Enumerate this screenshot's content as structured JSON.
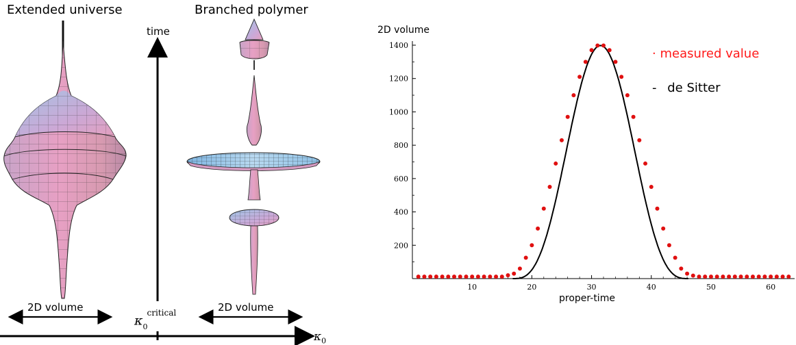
{
  "diagram": {
    "extended_title": "Extended universe",
    "branched_title": "Branched polymer",
    "time_label": "time",
    "volume_label_left": "2D volume",
    "volume_label_right": "2D volume",
    "kappa_critical": "κ",
    "kappa_critical_sub": "0",
    "kappa_critical_sup": "critical",
    "kappa_axis": "κ",
    "kappa_axis_sub": "0"
  },
  "chart_data": {
    "type": "scatter",
    "title": "",
    "ylabel": "2D volume",
    "xlabel": "proper-time",
    "xlim": [
      0,
      64
    ],
    "ylim": [
      0,
      1400
    ],
    "xticks": [
      10,
      20,
      30,
      40,
      50,
      60
    ],
    "yticks": [
      200,
      400,
      600,
      800,
      1000,
      1200,
      1400
    ],
    "legend": [
      {
        "marker": "·",
        "label": "measured value",
        "color": "#ff1a1a"
      },
      {
        "marker": "-",
        "label": "de Sitter",
        "color": "#000000"
      }
    ],
    "legend_placement": "top-right",
    "series": [
      {
        "name": "measured value",
        "style": "points",
        "color": "#e01010",
        "x": [
          1,
          2,
          3,
          4,
          5,
          6,
          7,
          8,
          9,
          10,
          11,
          12,
          13,
          14,
          15,
          16,
          17,
          18,
          19,
          20,
          21,
          22,
          23,
          24,
          25,
          26,
          27,
          28,
          29,
          30,
          31,
          32,
          33,
          34,
          35,
          36,
          37,
          38,
          39,
          40,
          41,
          42,
          43,
          44,
          45,
          46,
          47,
          48,
          49,
          50,
          51,
          52,
          53,
          54,
          55,
          56,
          57,
          58,
          59,
          60,
          61,
          62,
          63
        ],
        "y": [
          12,
          12,
          12,
          12,
          12,
          12,
          12,
          12,
          12,
          12,
          12,
          12,
          12,
          12,
          12,
          20,
          30,
          60,
          125,
          200,
          300,
          420,
          550,
          690,
          830,
          970,
          1100,
          1210,
          1300,
          1370,
          1398,
          1398,
          1370,
          1300,
          1210,
          1100,
          970,
          830,
          690,
          550,
          420,
          300,
          200,
          125,
          60,
          30,
          18,
          12,
          12,
          12,
          12,
          12,
          12,
          12,
          12,
          12,
          12,
          12,
          12,
          12,
          12,
          12,
          12
        ]
      },
      {
        "name": "de Sitter",
        "style": "line",
        "color": "#000000",
        "center": 31.5,
        "amplitude": 1398,
        "support": [
          16.8,
          46.2
        ]
      }
    ]
  }
}
